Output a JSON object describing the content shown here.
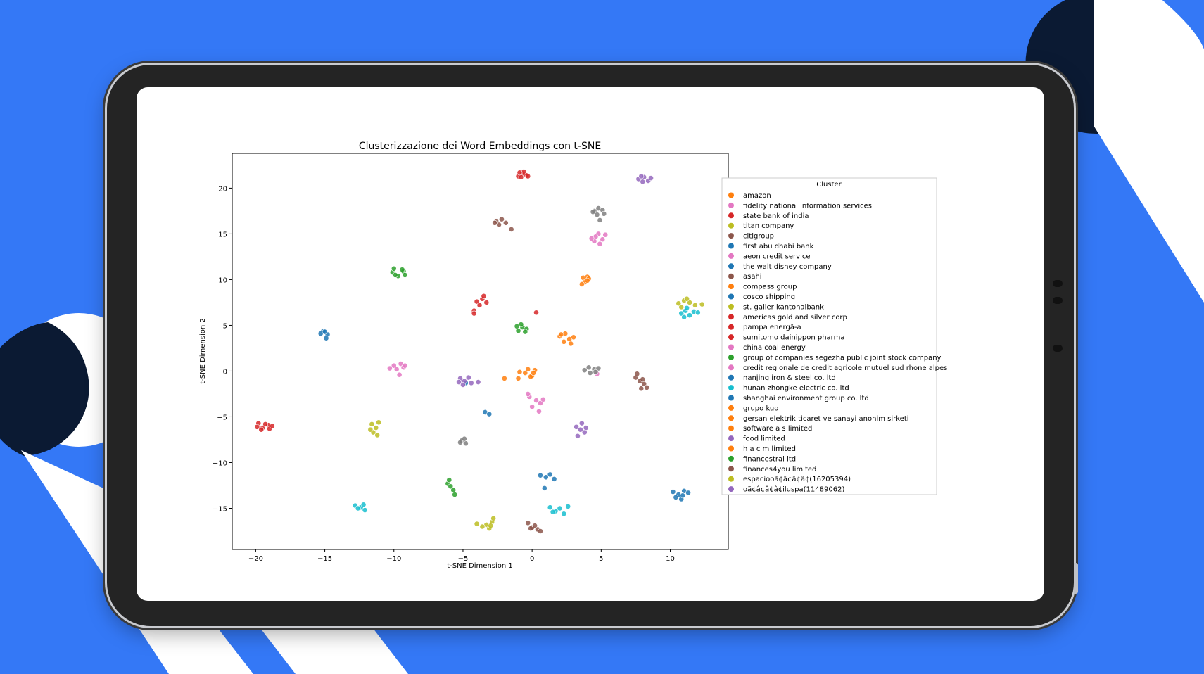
{
  "colors": {
    "background": "#3478f6",
    "navy": "#0b1a33",
    "white": "#ffffff",
    "device": "#242424"
  },
  "chart_data": {
    "type": "scatter",
    "title": "Clusterizzazione dei Word Embeddings con t-SNE",
    "xlabel": "t-SNE Dimension 1",
    "ylabel": "t-SNE Dimension 2",
    "xlim": [
      -21.7,
      14.2
    ],
    "ylim": [
      -19.5,
      23.8
    ],
    "xticks": [
      -20,
      -15,
      -10,
      -5,
      0,
      5,
      10
    ],
    "yticks": [
      -15,
      -10,
      -5,
      0,
      5,
      10,
      15,
      20
    ],
    "xtick_labels": [
      "−20",
      "−15",
      "−10",
      "−5",
      "0",
      "5",
      "10"
    ],
    "ytick_labels": [
      "−15",
      "−10",
      "−5",
      "0",
      "5",
      "10",
      "15",
      "20"
    ],
    "grid": false,
    "legend_title": "Cluster",
    "legend_position": "outside-right",
    "series": [
      {
        "name": "amazon",
        "color": "#ff7f0e",
        "points": [
          [
            -0.5,
            -0.2
          ],
          [
            0.0,
            -0.5
          ],
          [
            -0.3,
            0.2
          ],
          [
            0.2,
            0.1
          ],
          [
            -0.1,
            -0.6
          ],
          [
            -1.0,
            -0.8
          ],
          [
            0.1,
            -0.2
          ]
        ]
      },
      {
        "name": "fidelity national information services",
        "color": "#e377c2",
        "points": [
          [
            4.5,
            14.2
          ],
          [
            4.8,
            15.0
          ],
          [
            5.1,
            14.4
          ],
          [
            4.6,
            14.7
          ],
          [
            5.3,
            14.9
          ],
          [
            4.9,
            13.9
          ],
          [
            4.3,
            14.5
          ]
        ]
      },
      {
        "name": "state bank of india",
        "color": "#d62728",
        "points": [
          [
            -1.0,
            21.3
          ],
          [
            -0.7,
            21.6
          ],
          [
            -0.4,
            21.4
          ],
          [
            -0.8,
            21.2
          ],
          [
            -0.6,
            21.8
          ],
          [
            -0.3,
            21.3
          ],
          [
            -0.9,
            21.7
          ]
        ]
      },
      {
        "name": "titan company",
        "color": "#bcbd22",
        "points": [
          [
            -3.3,
            -16.8
          ],
          [
            -2.9,
            -16.5
          ],
          [
            -3.1,
            -17.2
          ],
          [
            -2.8,
            -16.1
          ],
          [
            -3.6,
            -17.0
          ],
          [
            -3.0,
            -16.9
          ],
          [
            -4.0,
            -16.7
          ]
        ]
      },
      {
        "name": "citigroup",
        "color": "#8c564b",
        "points": [
          [
            -2.6,
            16.4
          ],
          [
            -2.2,
            16.6
          ],
          [
            -2.4,
            16.0
          ],
          [
            -1.9,
            16.2
          ],
          [
            -2.7,
            16.2
          ],
          [
            -1.5,
            15.5
          ]
        ]
      },
      {
        "name": "first abu dhabi bank",
        "color": "#1f77b4",
        "points": [
          [
            -15.1,
            4.4
          ],
          [
            -14.8,
            4.0
          ],
          [
            -15.3,
            4.1
          ],
          [
            -14.9,
            3.6
          ],
          [
            -15.0,
            4.3
          ]
        ]
      },
      {
        "name": "aeon credit service",
        "color": "#e377c2",
        "points": [
          [
            -10.0,
            0.6
          ],
          [
            -9.8,
            0.2
          ],
          [
            -9.5,
            0.8
          ],
          [
            -9.3,
            0.4
          ],
          [
            -9.6,
            -0.4
          ],
          [
            -10.3,
            0.3
          ],
          [
            -9.2,
            0.6
          ]
        ]
      },
      {
        "name": "the walt disney company",
        "color": "#1f77b4",
        "points": [
          [
            0.6,
            -11.4
          ],
          [
            1.0,
            -11.6
          ],
          [
            1.3,
            -11.3
          ],
          [
            1.6,
            -11.8
          ],
          [
            0.9,
            -12.8
          ]
        ]
      },
      {
        "name": "asahi",
        "color": "#8c564b",
        "points": [
          [
            7.5,
            -0.7
          ],
          [
            7.8,
            -1.1
          ],
          [
            8.1,
            -1.4
          ],
          [
            8.3,
            -1.8
          ],
          [
            7.6,
            -0.3
          ],
          [
            8.0,
            -0.9
          ],
          [
            7.9,
            -1.9
          ]
        ]
      },
      {
        "name": "compass group",
        "color": "#ff7f0e",
        "points": [
          [
            3.7,
            10.2
          ],
          [
            4.0,
            10.3
          ],
          [
            3.8,
            9.7
          ],
          [
            4.1,
            10.1
          ],
          [
            3.6,
            9.5
          ]
        ]
      },
      {
        "name": "cosco shipping",
        "color": "#1f77b4",
        "points": [
          [
            10.2,
            -13.2
          ],
          [
            10.6,
            -13.5
          ],
          [
            11.0,
            -13.1
          ],
          [
            10.8,
            -14.0
          ],
          [
            10.4,
            -13.8
          ],
          [
            11.3,
            -13.3
          ],
          [
            10.9,
            -13.6
          ]
        ]
      },
      {
        "name": "st. galler kantonalbank",
        "color": "#bcbd22",
        "points": [
          [
            10.6,
            7.4
          ],
          [
            11.0,
            7.7
          ],
          [
            11.4,
            7.5
          ],
          [
            11.8,
            7.2
          ],
          [
            10.8,
            7.0
          ],
          [
            12.3,
            7.3
          ],
          [
            11.2,
            7.9
          ]
        ]
      },
      {
        "name": "americas gold and silver corp",
        "color": "#d62728",
        "points": [
          [
            -4.0,
            7.6
          ],
          [
            -3.6,
            7.9
          ],
          [
            -3.3,
            7.5
          ],
          [
            -3.8,
            7.2
          ],
          [
            -3.5,
            8.2
          ],
          [
            -4.2,
            6.6
          ]
        ]
      },
      {
        "name": "pampa energã-a",
        "color": "#d62728",
        "points": [
          [
            -19.8,
            -5.7
          ],
          [
            -19.5,
            -6.2
          ],
          [
            -19.1,
            -5.9
          ],
          [
            -19.6,
            -6.4
          ],
          [
            -19.0,
            -6.3
          ],
          [
            -19.3,
            -5.8
          ],
          [
            -19.9,
            -6.1
          ],
          [
            -18.8,
            -6.0
          ]
        ]
      },
      {
        "name": "sumitomo dainippon pharma",
        "color": "#d62728",
        "points": [
          [
            0.3,
            6.4
          ],
          [
            -4.2,
            6.3
          ]
        ]
      },
      {
        "name": "china coal energy",
        "color": "#e377c2",
        "points": [
          [
            -0.2,
            -2.8
          ],
          [
            0.3,
            -3.2
          ],
          [
            0.6,
            -3.5
          ],
          [
            0.0,
            -3.9
          ],
          [
            0.8,
            -3.1
          ],
          [
            0.5,
            -4.4
          ],
          [
            -0.3,
            -2.5
          ]
        ]
      },
      {
        "name": "group of companies segezha public joint stock company",
        "color": "#2ca02c",
        "points": [
          [
            -10.1,
            10.8
          ],
          [
            -9.7,
            10.4
          ],
          [
            -9.3,
            10.9
          ],
          [
            -9.9,
            10.5
          ],
          [
            -9.4,
            11.1
          ],
          [
            -10.0,
            11.2
          ],
          [
            -9.2,
            10.5
          ]
        ]
      },
      {
        "name": "credit regionale de credit agricole mutuel sud rhone alpes",
        "color": "#e377c2",
        "points": [
          [
            4.7,
            -0.3
          ]
        ]
      },
      {
        "name": "nanjing iron & steel co. ltd",
        "color": "#1f77b4",
        "points": [
          [
            -3.4,
            -4.5
          ],
          [
            -3.1,
            -4.7
          ]
        ]
      },
      {
        "name": "hunan zhongke electric co. ltd",
        "color": "#17becf",
        "points": [
          [
            -12.8,
            -14.7
          ],
          [
            -12.4,
            -14.9
          ],
          [
            -12.1,
            -15.2
          ],
          [
            -12.6,
            -15.0
          ],
          [
            -12.2,
            -14.6
          ],
          [
            1.3,
            -14.9
          ],
          [
            1.7,
            -15.3
          ],
          [
            2.0,
            -15.0
          ],
          [
            2.3,
            -15.6
          ],
          [
            2.6,
            -14.8
          ],
          [
            1.5,
            -15.4
          ]
        ]
      },
      {
        "name": "shanghai environment group co. ltd",
        "color": "#1f77b4",
        "points": [
          [
            -4.8,
            -1.3
          ]
        ]
      },
      {
        "name": "grupo kuo",
        "color": "#ff7f0e",
        "points": [
          [
            2.0,
            3.8
          ],
          [
            2.4,
            4.1
          ],
          [
            2.7,
            3.5
          ],
          [
            2.3,
            3.2
          ],
          [
            2.8,
            3.0
          ],
          [
            3.0,
            3.7
          ],
          [
            2.1,
            4.0
          ]
        ]
      },
      {
        "name": "gersan elektrik ticaret ve sanayi anonim sirketi",
        "color": "#ff7f0e",
        "points": [
          [
            -0.9,
            -0.1
          ]
        ]
      },
      {
        "name": "software a s limited",
        "color": "#ff7f0e",
        "points": [
          [
            4.0,
            9.9
          ]
        ]
      },
      {
        "name": "food limited",
        "color": "#9467bd",
        "points": [
          [
            -5.2,
            -0.8
          ],
          [
            -4.9,
            -1.1
          ],
          [
            -4.6,
            -0.7
          ],
          [
            -5.0,
            -1.5
          ],
          [
            -4.4,
            -1.3
          ],
          [
            -3.9,
            -1.2
          ],
          [
            -5.3,
            -1.2
          ]
        ]
      },
      {
        "name": "h a c m limited",
        "color": "#ff7f0e",
        "points": [
          [
            -2.0,
            -0.8
          ]
        ]
      },
      {
        "name": "financestral ltd",
        "color": "#2ca02c",
        "points": [
          [
            -1.0,
            4.4
          ],
          [
            -0.7,
            4.8
          ],
          [
            -0.4,
            4.6
          ],
          [
            -0.8,
            5.1
          ],
          [
            -0.5,
            4.3
          ],
          [
            -1.1,
            4.9
          ]
        ]
      },
      {
        "name": "finances4you limited",
        "color": "#8c564b",
        "points": [
          [
            -0.3,
            -16.6
          ],
          [
            0.0,
            -17.1
          ],
          [
            0.4,
            -17.3
          ],
          [
            0.2,
            -16.9
          ],
          [
            0.6,
            -17.5
          ],
          [
            -0.1,
            -17.2
          ]
        ]
      },
      {
        "name": "espaciooã¢â¢â¢â¢(16205394)",
        "color": "#bcbd22",
        "points": [
          [
            -11.6,
            -5.8
          ],
          [
            -11.3,
            -6.2
          ],
          [
            -11.1,
            -5.6
          ],
          [
            -11.5,
            -6.7
          ],
          [
            -11.2,
            -7.0
          ],
          [
            -11.7,
            -6.4
          ]
        ]
      },
      {
        "name": "oã¢â¢â¢â¢iluspa(11489062)",
        "color": "#9467bd",
        "points": [
          [
            7.7,
            21.0
          ],
          [
            8.1,
            21.2
          ],
          [
            8.4,
            20.8
          ],
          [
            8.0,
            20.7
          ],
          [
            8.6,
            21.1
          ],
          [
            7.9,
            21.3
          ]
        ]
      },
      {
        "name": "",
        "color": "#7f7f7f",
        "points": [
          [
            4.5,
            17.5
          ],
          [
            4.8,
            17.8
          ],
          [
            5.1,
            17.6
          ],
          [
            4.7,
            17.1
          ],
          [
            5.2,
            17.2
          ],
          [
            4.9,
            16.5
          ],
          [
            4.4,
            17.4
          ],
          [
            3.8,
            0.1
          ],
          [
            4.1,
            0.4
          ],
          [
            4.5,
            0.2
          ],
          [
            4.8,
            0.3
          ],
          [
            4.2,
            -0.2
          ],
          [
            4.6,
            -0.1
          ],
          [
            -5.1,
            -7.6
          ],
          [
            -4.8,
            -7.9
          ],
          [
            -4.9,
            -7.4
          ],
          [
            -5.2,
            -7.8
          ]
        ]
      },
      {
        "name": "",
        "color": "#9467bd",
        "points": [
          [
            3.2,
            -6.1
          ],
          [
            3.5,
            -6.4
          ],
          [
            3.8,
            -6.7
          ],
          [
            3.6,
            -5.7
          ],
          [
            3.3,
            -7.1
          ],
          [
            3.9,
            -6.2
          ]
        ]
      },
      {
        "name": "",
        "color": "#2ca02c",
        "points": [
          [
            -6.1,
            -12.3
          ],
          [
            -5.9,
            -12.6
          ],
          [
            -5.7,
            -13.0
          ],
          [
            -5.6,
            -13.5
          ],
          [
            -6.0,
            -11.9
          ]
        ]
      },
      {
        "name": "",
        "color": "#17becf",
        "points": [
          [
            10.8,
            6.3
          ],
          [
            11.1,
            6.6
          ],
          [
            11.4,
            6.1
          ],
          [
            11.7,
            6.5
          ],
          [
            11.2,
            6.9
          ],
          [
            11.0,
            5.9
          ],
          [
            12.0,
            6.4
          ]
        ]
      }
    ]
  }
}
